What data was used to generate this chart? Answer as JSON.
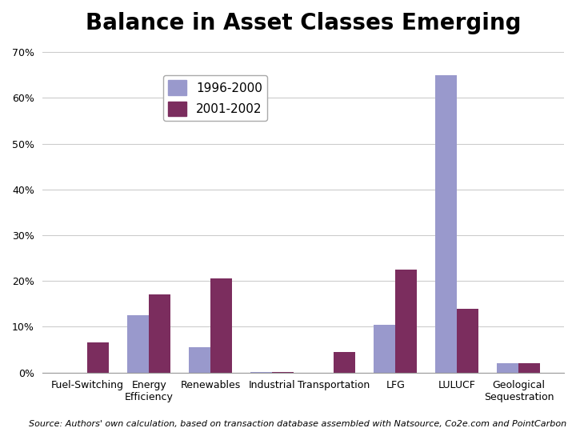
{
  "title": "Balance in Asset Classes Emerging",
  "categories": [
    "Fuel-Switching",
    "Energy\nEfficiency",
    "Renewables",
    "Industrial",
    "Transportation",
    "LFG",
    "LULUCF",
    "Geological\nSequestration"
  ],
  "values_1996_2000": [
    0.0,
    0.125,
    0.055,
    0.001,
    0.0,
    0.105,
    0.65,
    0.02
  ],
  "values_2001_2002": [
    0.065,
    0.17,
    0.205,
    0.001,
    0.045,
    0.225,
    0.14,
    0.02
  ],
  "color_1996_2000": "#9999CC",
  "color_2001_2002": "#7B2D5E",
  "legend_labels": [
    "1996-2000",
    "2001-2002"
  ],
  "ylim": [
    0,
    0.72
  ],
  "yticks": [
    0.0,
    0.1,
    0.2,
    0.3,
    0.4,
    0.5,
    0.6,
    0.7
  ],
  "ytick_labels": [
    "0%",
    "10%",
    "20%",
    "30%",
    "40%",
    "50%",
    "60%",
    "70%"
  ],
  "source_text": "Source: Authors' own calculation, based on transaction database assembled with Natsource, Co2e.com and PointCarbon",
  "bar_width": 0.35,
  "background_color": "#FFFFFF",
  "title_fontsize": 20,
  "axis_fontsize": 9,
  "legend_fontsize": 11,
  "source_fontsize": 8
}
